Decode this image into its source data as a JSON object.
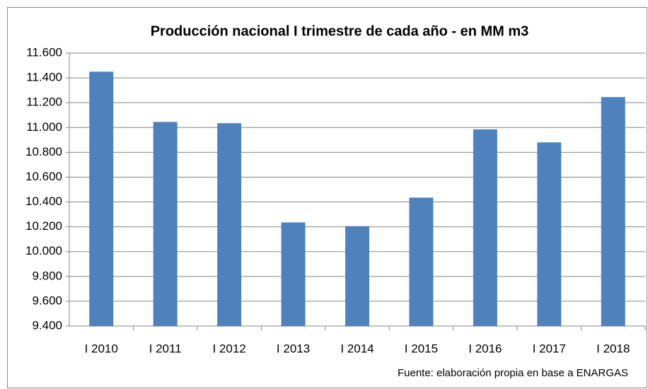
{
  "chart_data": {
    "type": "bar",
    "title": "Producción nacional I trimestre de cada año - en MM m3",
    "categories": [
      "I 2010",
      "I 2011",
      "I 2012",
      "I 2013",
      "I 2014",
      "I 2015",
      "I 2016",
      "I 2017",
      "I 2018"
    ],
    "values": [
      11450,
      11045,
      11035,
      10235,
      10205,
      10435,
      10985,
      10880,
      11245
    ],
    "color": "#4f81bd",
    "ylim": [
      9400,
      11600
    ],
    "yticks": [
      {
        "value": 9400,
        "label": "9.400"
      },
      {
        "value": 9600,
        "label": "9.600"
      },
      {
        "value": 9800,
        "label": "9.800"
      },
      {
        "value": 10000,
        "label": "10.000"
      },
      {
        "value": 10200,
        "label": "10.200"
      },
      {
        "value": 10400,
        "label": "10.400"
      },
      {
        "value": 10600,
        "label": "10.600"
      },
      {
        "value": 10800,
        "label": "10.800"
      },
      {
        "value": 11000,
        "label": "11.000"
      },
      {
        "value": 11200,
        "label": "11.200"
      },
      {
        "value": 11400,
        "label": "11.400"
      },
      {
        "value": 11600,
        "label": "11.600"
      }
    ],
    "grid": true,
    "source": "Fuente: elaboración propia en base a ENARGAS"
  }
}
